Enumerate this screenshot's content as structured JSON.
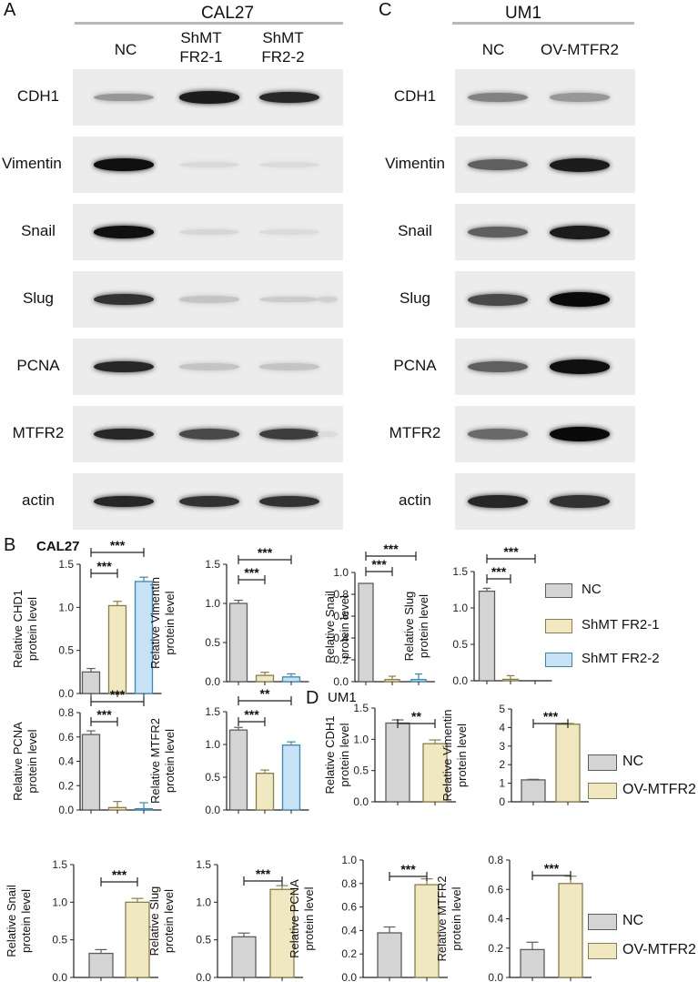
{
  "panels": {
    "A": "A",
    "B": "B",
    "C": "C",
    "D": "D"
  },
  "cal27_title": "CAL27",
  "um1_title": "UM1",
  "cal27_lanes": [
    "NC",
    "ShMT\nFR2-1",
    "ShMT\nFR2-2"
  ],
  "um1_lanes": [
    "NC",
    "OV-MTFR2"
  ],
  "markers": [
    "CDH1",
    "Vimentin",
    "Snail",
    "Slug",
    "PCNA",
    "MTFR2",
    "actin"
  ],
  "b_label": "CAL27",
  "d_label": "UM1",
  "legend_cal27": [
    "NC",
    "ShMT FR2-1",
    "ShMT FR2-2"
  ],
  "legend_um1": [
    "NC",
    "OV-MTFR2"
  ],
  "colors": {
    "nc": "#d4d4d4",
    "sh1": "#efe8c0",
    "sh2": "#c6e2f4",
    "ov": "#efe8c0",
    "nc_edge": "#5c5c5c",
    "sh1_edge": "#8a7d4a",
    "sh2_edge": "#3a86b4"
  },
  "chart_data": [
    {
      "type": "bar",
      "ylabel": "Relative CHD1 protein level",
      "ylim": [
        0,
        1.5
      ],
      "ticks": [
        "0.0",
        "0.5",
        "1.0",
        "1.5"
      ],
      "categories": [
        "NC",
        "ShMT FR2-1",
        "ShMT FR2-2"
      ],
      "values": [
        0.25,
        1.02,
        1.3
      ],
      "errors": [
        0.04,
        0.05,
        0.05
      ],
      "sig": [
        "***",
        "***"
      ]
    },
    {
      "type": "bar",
      "ylabel": "Relative Vimentin protein level",
      "ylim": [
        0,
        1.5
      ],
      "ticks": [
        "0.0",
        "0.5",
        "1.0",
        "1.5"
      ],
      "categories": [
        "NC",
        "ShMT FR2-1",
        "ShMT FR2-2"
      ],
      "values": [
        1.0,
        0.08,
        0.06
      ],
      "errors": [
        0.04,
        0.04,
        0.04
      ],
      "sig": [
        "***",
        "***"
      ]
    },
    {
      "type": "bar",
      "ylabel": "Relative Snail protein level",
      "ylim": [
        0,
        1.0
      ],
      "ticks": [
        "0.0",
        "0.2",
        "0.4",
        "0.6",
        "0.8",
        "1.0"
      ],
      "categories": [
        "NC",
        "ShMT FR2-1",
        "ShMT FR2-2"
      ],
      "values": [
        0.9,
        0.02,
        0.02
      ],
      "errors": [
        0.0,
        0.03,
        0.05
      ],
      "sig": [
        "***",
        "***"
      ]
    },
    {
      "type": "bar",
      "ylabel": "Relative Slug protein level",
      "ylim": [
        0,
        1.5
      ],
      "ticks": [
        "0.0",
        "0.5",
        "1.0",
        "1.5"
      ],
      "categories": [
        "NC",
        "ShMT FR2-1",
        "ShMT FR2-2"
      ],
      "values": [
        1.23,
        0.02,
        0.0
      ],
      "errors": [
        0.04,
        0.05,
        0.0
      ],
      "sig": [
        "***",
        "***"
      ]
    },
    {
      "type": "bar",
      "ylabel": "Relative PCNA protein level",
      "ylim": [
        0,
        0.8
      ],
      "ticks": [
        "0.0",
        "0.2",
        "0.4",
        "0.6",
        "0.8"
      ],
      "categories": [
        "NC",
        "ShMT FR2-1",
        "ShMT FR2-2"
      ],
      "values": [
        0.62,
        0.02,
        0.01
      ],
      "errors": [
        0.03,
        0.05,
        0.05
      ],
      "sig": [
        "***",
        "***"
      ]
    },
    {
      "type": "bar",
      "ylabel": "Relative MTFR2 protein level",
      "ylim": [
        0,
        1.5
      ],
      "ticks": [
        "0.0",
        "0.5",
        "1.0",
        "1.5"
      ],
      "categories": [
        "NC",
        "ShMT FR2-1",
        "ShMT FR2-2"
      ],
      "values": [
        1.22,
        0.56,
        0.99
      ],
      "errors": [
        0.04,
        0.05,
        0.05
      ],
      "sig": [
        "***",
        "**"
      ]
    },
    {
      "type": "bar",
      "ylabel": "Relative CDH1 protein level",
      "ylim": [
        0,
        1.5
      ],
      "ticks": [
        "0.0",
        "0.5",
        "1.0",
        "1.5"
      ],
      "categories": [
        "NC",
        "OV-MTFR2"
      ],
      "values": [
        1.26,
        0.93
      ],
      "errors": [
        0.05,
        0.06
      ],
      "sig": [
        "**"
      ]
    },
    {
      "type": "bar",
      "ylabel": "Relative Vimentin protein level",
      "ylim": [
        0,
        5
      ],
      "ticks": [
        "0",
        "1",
        "2",
        "3",
        "4",
        "5"
      ],
      "categories": [
        "NC",
        "OV-MTFR2"
      ],
      "values": [
        1.18,
        4.18
      ],
      "errors": [
        0.03,
        0.04
      ],
      "sig": [
        "***"
      ]
    },
    {
      "type": "bar",
      "ylabel": "Relative Snail protein level",
      "ylim": [
        0,
        1.5
      ],
      "ticks": [
        "0.0",
        "0.5",
        "1.0",
        "1.5"
      ],
      "categories": [
        "NC",
        "OV-MTFR2"
      ],
      "values": [
        0.32,
        1.0
      ],
      "errors": [
        0.05,
        0.05
      ],
      "sig": [
        "***"
      ]
    },
    {
      "type": "bar",
      "ylabel": "Relative Slug protein level",
      "ylim": [
        0,
        1.5
      ],
      "ticks": [
        "0.0",
        "0.5",
        "1.0",
        "1.5"
      ],
      "categories": [
        "NC",
        "OV-MTFR2"
      ],
      "values": [
        0.54,
        1.17
      ],
      "errors": [
        0.05,
        0.05
      ],
      "sig": [
        "***"
      ]
    },
    {
      "type": "bar",
      "ylabel": "Relative PCNA protein level",
      "ylim": [
        0,
        1.0
      ],
      "ticks": [
        "0.0",
        "0.2",
        "0.4",
        "0.6",
        "0.8",
        "1.0"
      ],
      "categories": [
        "NC",
        "OV-MTFR2"
      ],
      "values": [
        0.38,
        0.79
      ],
      "errors": [
        0.05,
        0.05
      ],
      "sig": [
        "***"
      ]
    },
    {
      "type": "bar",
      "ylabel": "Relative MTFR2 protein level",
      "ylim": [
        0,
        0.8
      ],
      "ticks": [
        "0.0",
        "0.2",
        "0.4",
        "0.6",
        "0.8"
      ],
      "categories": [
        "NC",
        "OV-MTFR2"
      ],
      "values": [
        0.19,
        0.64
      ],
      "errors": [
        0.05,
        0.05
      ],
      "sig": [
        "***"
      ]
    }
  ]
}
